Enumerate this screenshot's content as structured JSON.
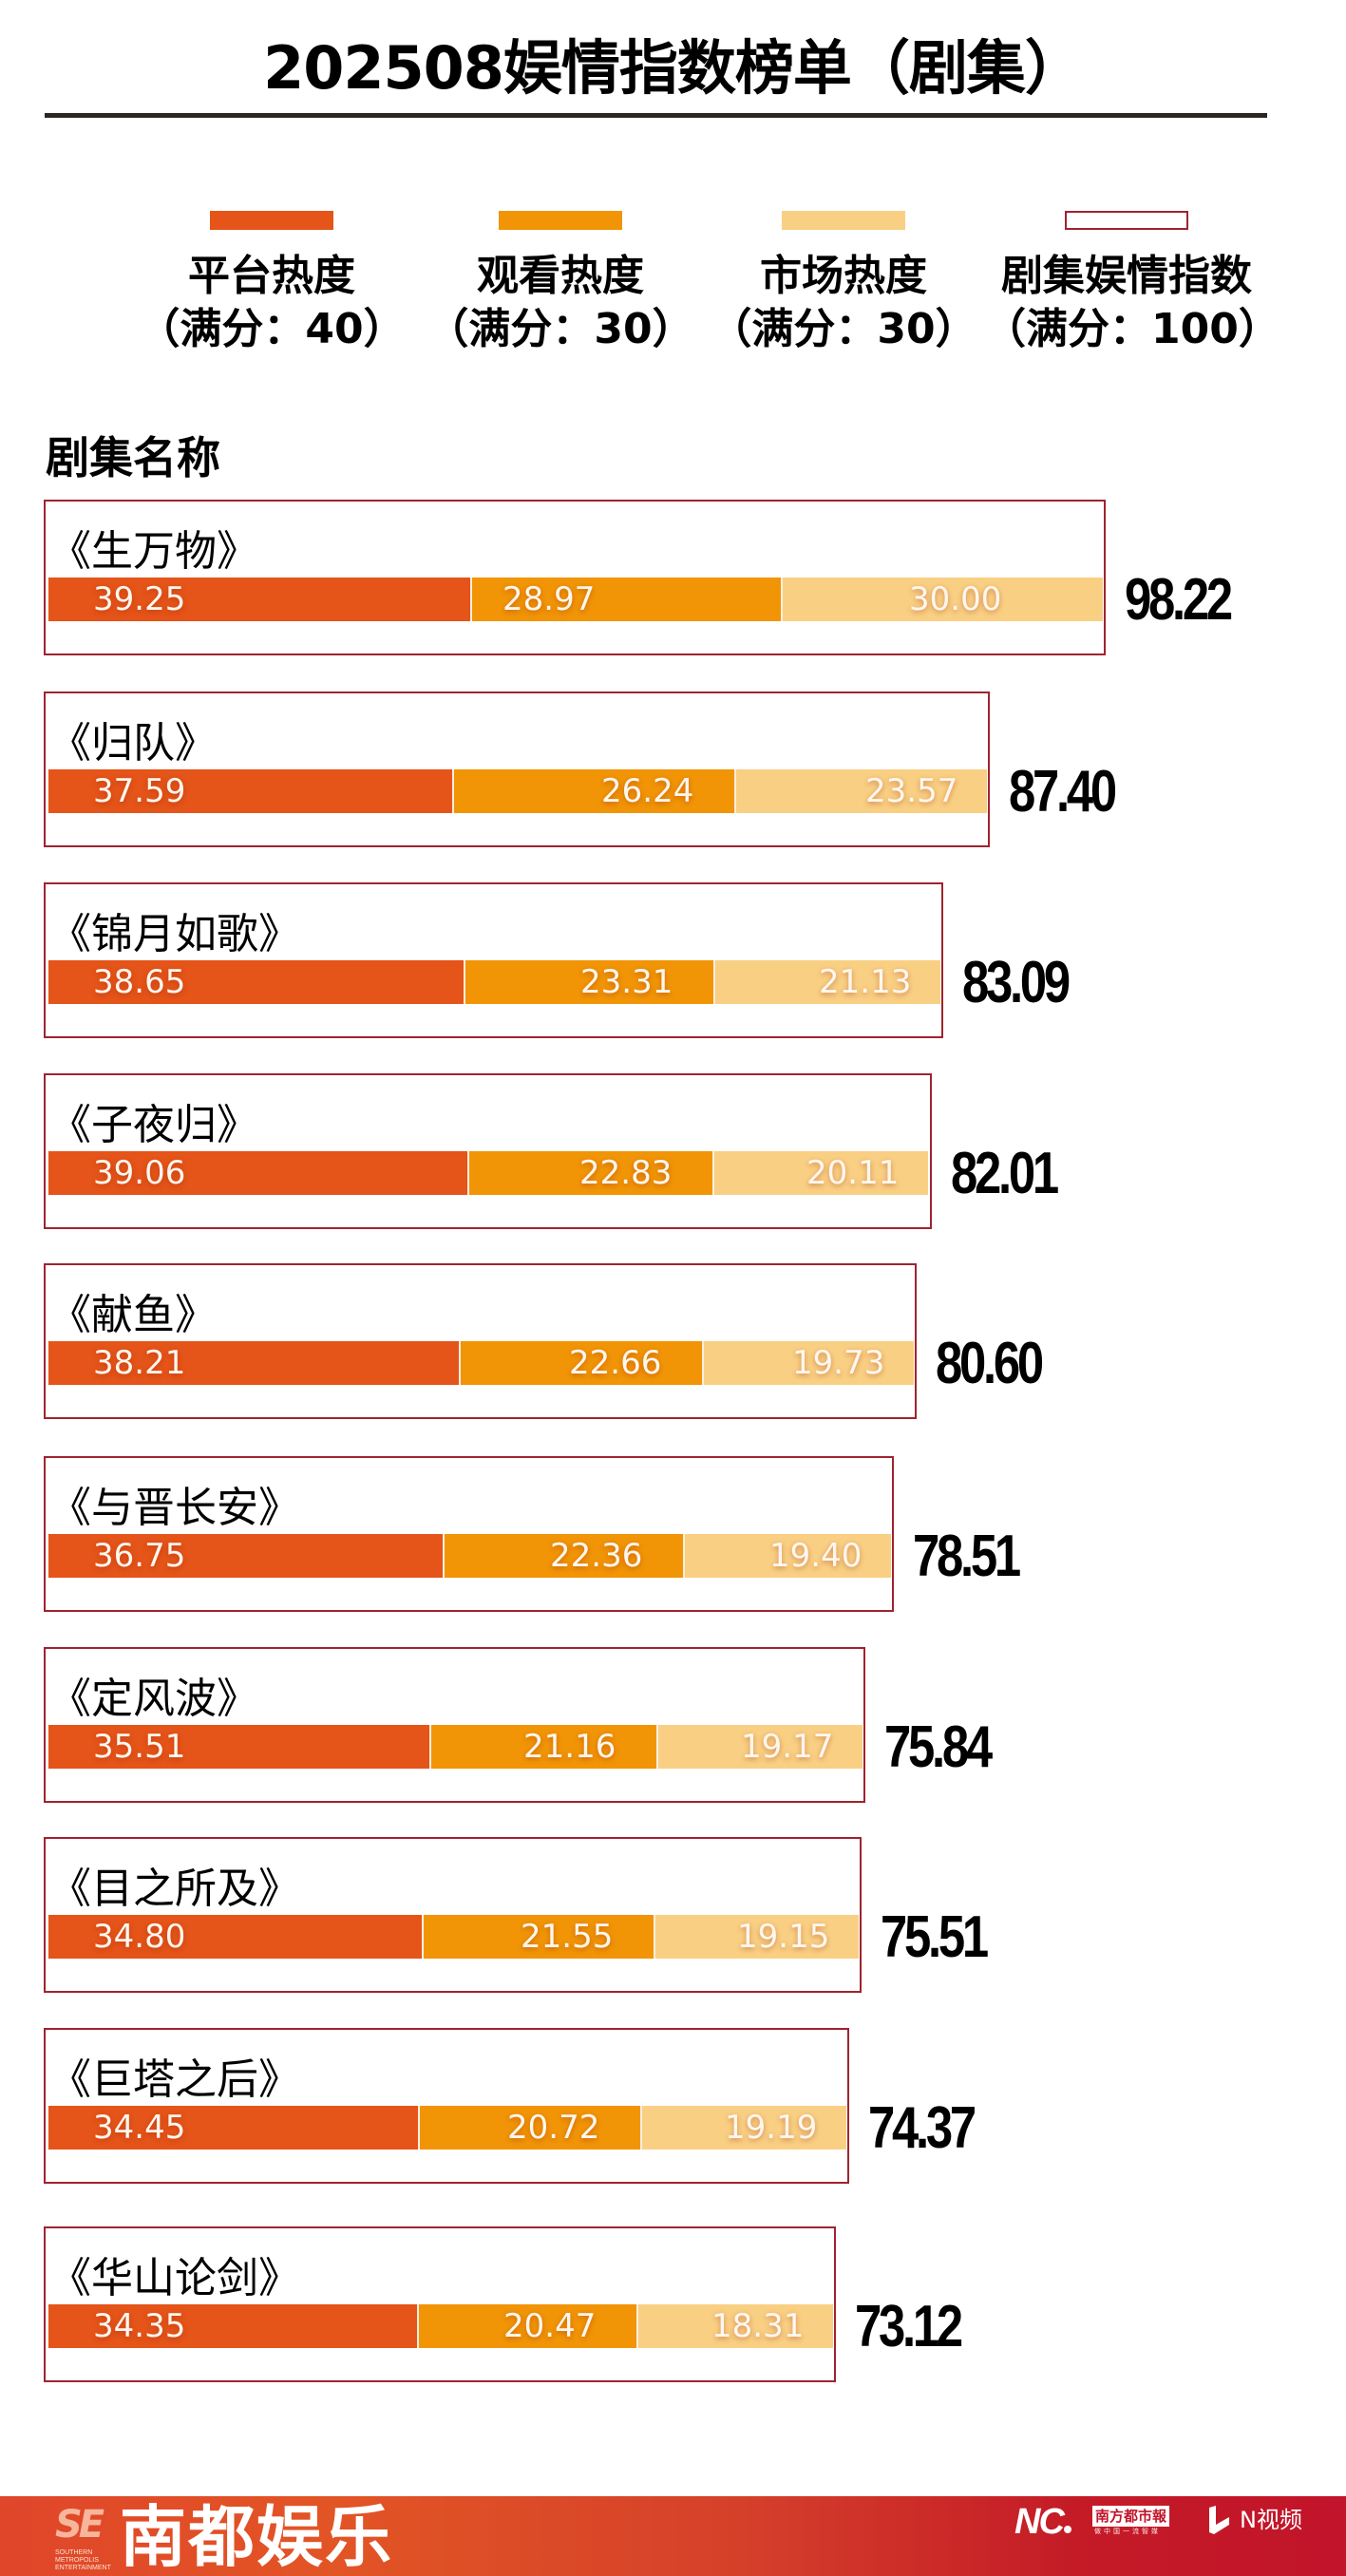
{
  "header": {
    "title": "202508娱情指数榜单（剧集）"
  },
  "legend": [
    {
      "label": "平台热度",
      "sub": "（满分：40）",
      "color": "#e55418",
      "style": "fill"
    },
    {
      "label": "观看热度",
      "sub": "（满分：30）",
      "color": "#f19506",
      "style": "fill"
    },
    {
      "label": "市场热度",
      "sub": "（满分：30）",
      "color": "#f9d083",
      "style": "fill"
    },
    {
      "label": "剧集娱情指数",
      "sub": "（满分：100）",
      "color": "#a0232f",
      "style": "outline"
    }
  ],
  "section_label": "剧集名称",
  "rows": [
    {
      "name": "《生万物》",
      "platform": "39.25",
      "watch": "28.97",
      "market": "30.00",
      "total": "98.22"
    },
    {
      "name": "《归队》",
      "platform": "37.59",
      "watch": "26.24",
      "market": "23.57",
      "total": "87.40"
    },
    {
      "name": "《锦月如歌》",
      "platform": "38.65",
      "watch": "23.31",
      "market": "21.13",
      "total": "83.09"
    },
    {
      "name": "《子夜归》",
      "platform": "39.06",
      "watch": "22.83",
      "market": "20.11",
      "total": "82.01"
    },
    {
      "name": "《献鱼》",
      "platform": "38.21",
      "watch": "22.66",
      "market": "19.73",
      "total": "80.60"
    },
    {
      "name": "《与晋长安》",
      "platform": "36.75",
      "watch": "22.36",
      "market": "19.40",
      "total": "78.51"
    },
    {
      "name": "《定风波》",
      "platform": "35.51",
      "watch": "21.16",
      "market": "19.17",
      "total": "75.84"
    },
    {
      "name": "《目之所及》",
      "platform": "34.80",
      "watch": "21.55",
      "market": "19.15",
      "total": "75.51"
    },
    {
      "name": "《巨塔之后》",
      "platform": "34.45",
      "watch": "20.72",
      "market": "19.19",
      "total": "74.37"
    },
    {
      "name": "《华山论剑》",
      "platform": "34.35",
      "watch": "20.47",
      "market": "18.31",
      "total": "73.12"
    }
  ],
  "footer": {
    "se_logo": "SE",
    "se_sub": "SOUTHERN METROPOLIS ENTERTAINMENT",
    "brand": "南都娱乐",
    "nc_logo": "NC",
    "paper_name": "南方都市報",
    "paper_slogan": "做中国一流智媒",
    "nvideo_label": "N视频"
  },
  "chart_data": {
    "type": "bar",
    "orientation": "horizontal",
    "stacked": true,
    "title": "202508娱情指数榜单（剧集）",
    "xlabel": "",
    "ylabel": "剧集名称",
    "categories": [
      "《生万物》",
      "《归队》",
      "《锦月如歌》",
      "《子夜归》",
      "《献鱼》",
      "《与晋长安》",
      "《定风波》",
      "《目之所及》",
      "《巨塔之后》",
      "《华山论剑》"
    ],
    "series": [
      {
        "name": "平台热度（满分：40）",
        "color": "#e55418",
        "values": [
          39.25,
          37.59,
          38.65,
          39.06,
          38.21,
          36.75,
          35.51,
          34.8,
          34.45,
          34.35
        ]
      },
      {
        "name": "观看热度（满分：30）",
        "color": "#f19506",
        "values": [
          28.97,
          26.24,
          23.31,
          22.83,
          22.66,
          22.36,
          21.16,
          21.55,
          20.72,
          20.47
        ]
      },
      {
        "name": "市场热度（满分：30）",
        "color": "#f9d083",
        "values": [
          30.0,
          23.57,
          21.13,
          20.11,
          19.73,
          19.4,
          19.17,
          19.15,
          19.19,
          18.31
        ]
      }
    ],
    "totals": {
      "name": "剧集娱情指数（满分：100）",
      "values": [
        98.22,
        87.4,
        83.09,
        82.01,
        80.6,
        78.51,
        75.84,
        75.51,
        74.37,
        73.12
      ]
    },
    "legend_position": "top",
    "grid": false
  }
}
